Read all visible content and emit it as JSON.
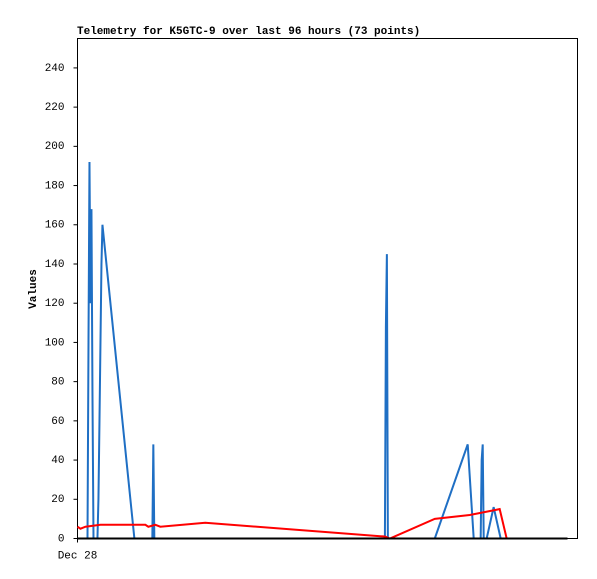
{
  "chart_data": {
    "type": "line",
    "title": "Telemetry for K5GTC-9 over last 96 hours (73 points)",
    "y_label": "Values",
    "xlim": [
      0,
      96
    ],
    "xticks": [
      {
        "value": 0,
        "label": "Dec 28"
      }
    ],
    "ylim": [
      0,
      255
    ],
    "yticks": [
      0,
      20,
      40,
      60,
      80,
      100,
      120,
      140,
      160,
      180,
      200,
      220,
      240
    ],
    "series": [
      {
        "color": "#1f6fc4",
        "x": [
          1.92,
          2.11,
          2.3,
          2.49,
          2.68,
          2.87,
          3.07,
          3.83,
          4.02,
          4.22,
          4.41,
          4.6,
          4.79,
          10.92,
          14.37,
          14.56,
          14.75,
          59.02,
          59.21,
          59.4,
          59.59,
          68.6,
          74.92,
          76.07,
          77.41,
          77.6,
          77.8,
          77.99,
          78.56,
          79.9,
          81.25
        ],
        "values": [
          0,
          100,
          192,
          120,
          168,
          75,
          0,
          0,
          20,
          60,
          100,
          140,
          160,
          0,
          0,
          48,
          0,
          0,
          108,
          145,
          0,
          0,
          48,
          0,
          0,
          40,
          48,
          0,
          0,
          16,
          0
        ]
      },
      {
        "color": "#ff0000",
        "x": [
          0,
          0.57,
          1.53,
          4.41,
          13.03,
          13.6,
          14.95,
          15.9,
          24.53,
          59.02,
          59.98,
          68.6,
          75.31,
          81.06,
          82.4
        ],
        "values": [
          6,
          5,
          6,
          7,
          7,
          6,
          7,
          6,
          8,
          1,
          0,
          10,
          12,
          15,
          0
        ]
      },
      {
        "color": "#000000",
        "x": [
          0,
          94.08
        ],
        "values": [
          0,
          0
        ]
      }
    ]
  }
}
